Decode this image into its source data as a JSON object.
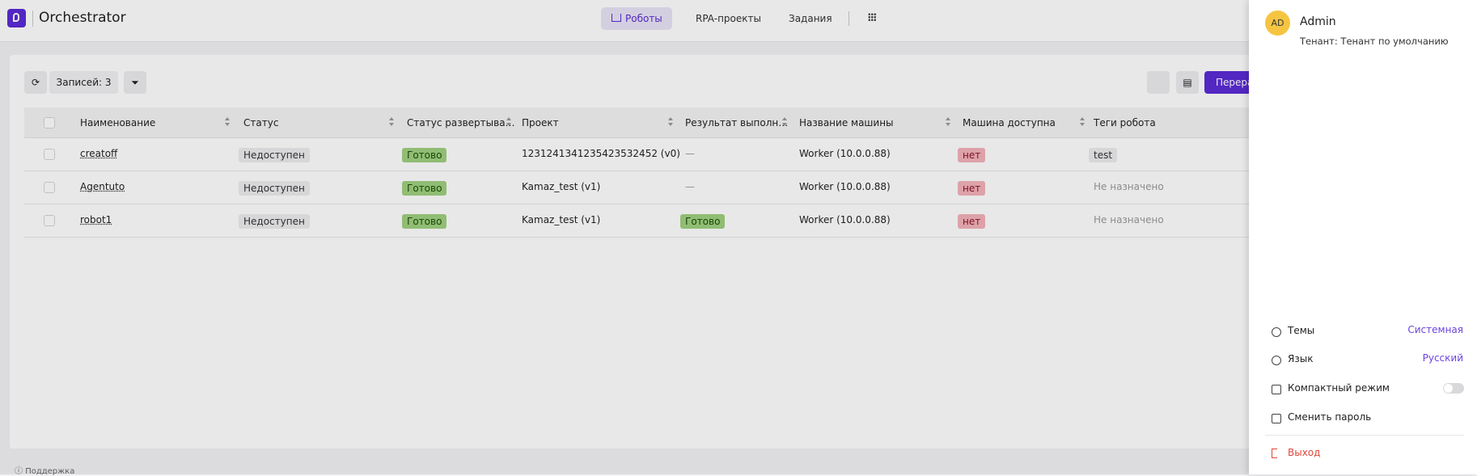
{
  "header": {
    "brand": "Orchestrator",
    "nav": [
      "Роботы",
      "RPA-проекты",
      "Задания"
    ]
  },
  "toolbar": {
    "records": "Записей: 3",
    "primary_button": "Перера"
  },
  "table": {
    "columns": [
      "Наименование",
      "Статус",
      "Статус развертыва…",
      "Проект",
      "Результат выполн…",
      "Название машины",
      "Машина доступна",
      "Теги робота"
    ],
    "rows": [
      [
        "creatoff",
        "Недоступен",
        "Готово",
        "1231241341235423532452 (v0)",
        "—",
        "Worker (10.0.0.88)",
        "нет",
        "test"
      ],
      [
        "Agentuto",
        "Недоступен",
        "Готово",
        "Kamaz_test (v1)",
        "—",
        "Worker (10.0.0.88)",
        "нет",
        "Не назначено"
      ],
      [
        "robot1",
        "Недоступен",
        "Готово",
        "Kamaz_test (v1)",
        "Готово",
        "Worker (10.0.0.88)",
        "нет",
        "Не назначено"
      ]
    ]
  },
  "footer": {
    "support": "Поддержка"
  },
  "drawer": {
    "avatar": "AD",
    "user": "Admin",
    "tenant": "Тенант: Тенант по умолчанию",
    "items": [
      {
        "label": "Темы",
        "value": "Системная"
      },
      {
        "label": "Язык",
        "value": "Русский"
      },
      {
        "label": "Компактный режим"
      },
      {
        "label": "Сменить пароль"
      }
    ],
    "logout": "Выход"
  }
}
